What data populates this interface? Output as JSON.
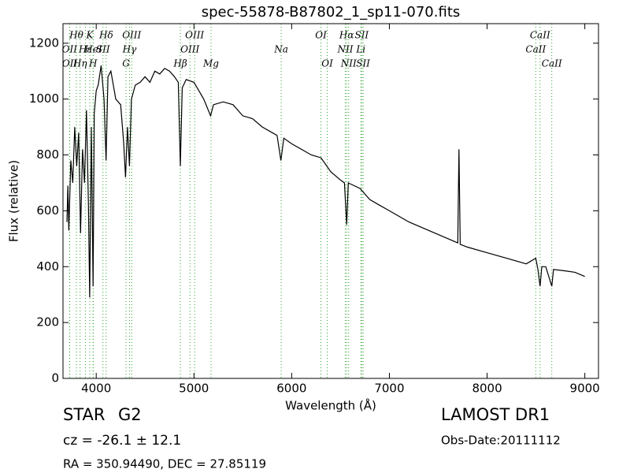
{
  "chart_data": {
    "type": "line",
    "title": "spec-55878-B87802_1_sp11-070.fits",
    "xlabel": "Wavelength (Å)",
    "ylabel": "Flux (relative)",
    "color": "#000000",
    "line_color": "#2ca02c",
    "xlim": [
      3660,
      9140
    ],
    "ylim": [
      0,
      1270
    ],
    "xticks": [
      4000,
      5000,
      6000,
      7000,
      8000,
      9000
    ],
    "yticks": [
      0,
      200,
      400,
      600,
      800,
      1000,
      1200
    ],
    "x": [
      3700,
      3710,
      3720,
      3740,
      3760,
      3780,
      3800,
      3820,
      3840,
      3860,
      3880,
      3900,
      3920,
      3933,
      3950,
      3968,
      3980,
      4000,
      4020,
      4050,
      4080,
      4101,
      4120,
      4150,
      4200,
      4250,
      4280,
      4300,
      4320,
      4340,
      4360,
      4400,
      4450,
      4500,
      4550,
      4600,
      4650,
      4700,
      4750,
      4800,
      4840,
      4861,
      4880,
      4920,
      5000,
      5100,
      5170,
      5200,
      5300,
      5400,
      5500,
      5600,
      5700,
      5800,
      5850,
      5890,
      5920,
      6000,
      6100,
      6200,
      6300,
      6400,
      6500,
      6540,
      6563,
      6580,
      6700,
      6800,
      6900,
      7000,
      7200,
      7400,
      7600,
      7700,
      7712,
      7725,
      7800,
      8000,
      8200,
      8400,
      8498,
      8520,
      8542,
      8560,
      8600,
      8662,
      8680,
      8800,
      8900,
      9000
    ],
    "values": [
      560,
      690,
      530,
      780,
      700,
      900,
      760,
      880,
      520,
      820,
      700,
      960,
      620,
      290,
      900,
      330,
      950,
      1030,
      1050,
      1120,
      1000,
      780,
      1080,
      1100,
      1000,
      980,
      850,
      720,
      900,
      760,
      1000,
      1050,
      1060,
      1080,
      1060,
      1100,
      1090,
      1110,
      1100,
      1080,
      1060,
      760,
      1040,
      1070,
      1060,
      1000,
      940,
      980,
      990,
      980,
      940,
      930,
      900,
      880,
      870,
      780,
      860,
      840,
      820,
      800,
      790,
      740,
      710,
      700,
      550,
      700,
      680,
      640,
      620,
      600,
      560,
      530,
      500,
      485,
      820,
      480,
      470,
      450,
      430,
      410,
      430,
      390,
      330,
      400,
      400,
      330,
      390,
      385,
      380,
      365
    ],
    "spectral_lines": [
      [
        {
          "label": "Hθ",
          "x": 3797
        },
        {
          "label": "K",
          "x": 3934
        },
        {
          "label": "Hδ",
          "x": 4102
        },
        {
          "label": "OIII",
          "x": 4363
        },
        {
          "label": "OIII",
          "x": 5007
        },
        {
          "label": "OI",
          "x": 6300
        },
        {
          "label": "Hα",
          "x": 6563
        },
        {
          "label": "SII",
          "x": 6717
        },
        {
          "label": "CaII",
          "x": 8542
        }
      ],
      [
        {
          "label": "OII",
          "x": 3727
        },
        {
          "label": "Hε",
          "x": 3889
        },
        {
          "label": "HeI",
          "x": 3970
        },
        {
          "label": "SII",
          "x": 4069
        },
        {
          "label": "Hγ",
          "x": 4341
        },
        {
          "label": "OIII",
          "x": 4959
        },
        {
          "label": "Na",
          "x": 5893
        },
        {
          "label": "NII",
          "x": 6549
        },
        {
          "label": "Li",
          "x": 6708
        },
        {
          "label": "CaII",
          "x": 8498
        }
      ],
      [
        {
          "label": "OII",
          "x": 3729
        },
        {
          "label": "Hη",
          "x": 3835
        },
        {
          "label": "H",
          "x": 3968
        },
        {
          "label": "G",
          "x": 4305
        },
        {
          "label": "Hβ",
          "x": 4861
        },
        {
          "label": "Mg",
          "x": 5175
        },
        {
          "label": "OI",
          "x": 6364
        },
        {
          "label": "NII",
          "x": 6583
        },
        {
          "label": "SII",
          "x": 6731
        },
        {
          "label": "CaII",
          "x": 8662
        }
      ]
    ],
    "object_class": "STAR",
    "subclass": "G2",
    "redshift": "cz = -26.1 ± 12.1",
    "coordinates": "RA = 350.94490, DEC = 27.85119",
    "survey": "LAMOST DR1",
    "obs_date": "Obs-Date:20111112"
  }
}
